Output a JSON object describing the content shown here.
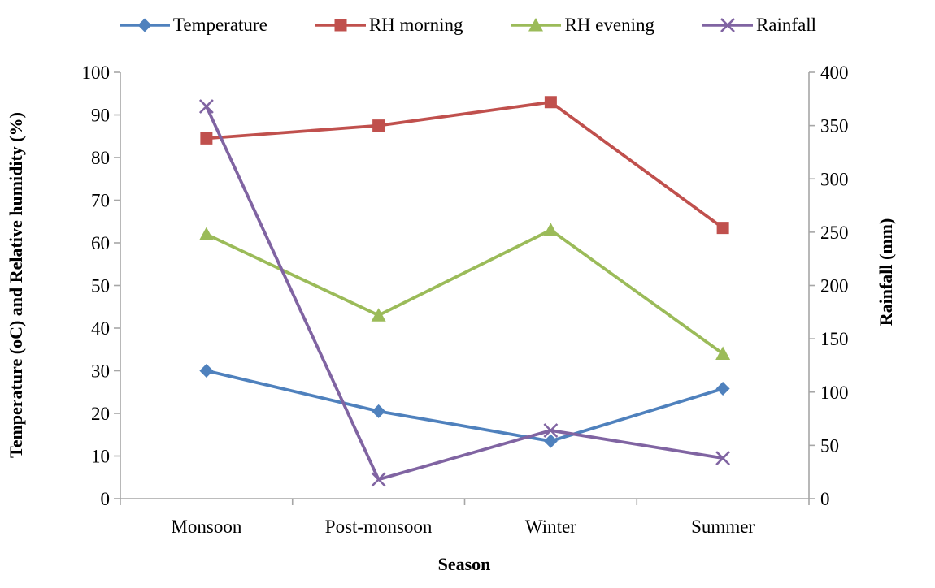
{
  "chart_data": {
    "type": "line",
    "categories": [
      "Monsoon",
      "Post-monsoon",
      "Winter",
      "Summer"
    ],
    "series": [
      {
        "name": "Temperature",
        "axis": "left",
        "marker": "diamond",
        "color": "#4F81BD",
        "values": [
          30,
          20.5,
          13.5,
          25.8
        ]
      },
      {
        "name": "RH morning",
        "axis": "left",
        "marker": "square",
        "color": "#C0504D",
        "values": [
          84.5,
          87.5,
          93,
          63.5
        ]
      },
      {
        "name": "RH evening",
        "axis": "left",
        "marker": "triangle",
        "color": "#9BBB59",
        "values": [
          62,
          43,
          63,
          34
        ]
      },
      {
        "name": "Rainfall",
        "axis": "right",
        "marker": "x",
        "color": "#8064A2",
        "values": [
          368,
          18,
          64,
          38
        ]
      }
    ],
    "title": "",
    "xlabel": "Season",
    "ylabel_left": "Temperature (oC) and Relative humidity (%)",
    "ylabel_right": "Rainfall (mm)",
    "ylim_left": [
      0,
      100
    ],
    "ytick_step_left": 10,
    "ylim_right": [
      0,
      400
    ],
    "ytick_step_right": 50,
    "legend_position": "top",
    "grid": false
  },
  "styles": {
    "axis_color": "#A6A6A6",
    "text_color": "#000000",
    "background": "#FFFFFF"
  }
}
